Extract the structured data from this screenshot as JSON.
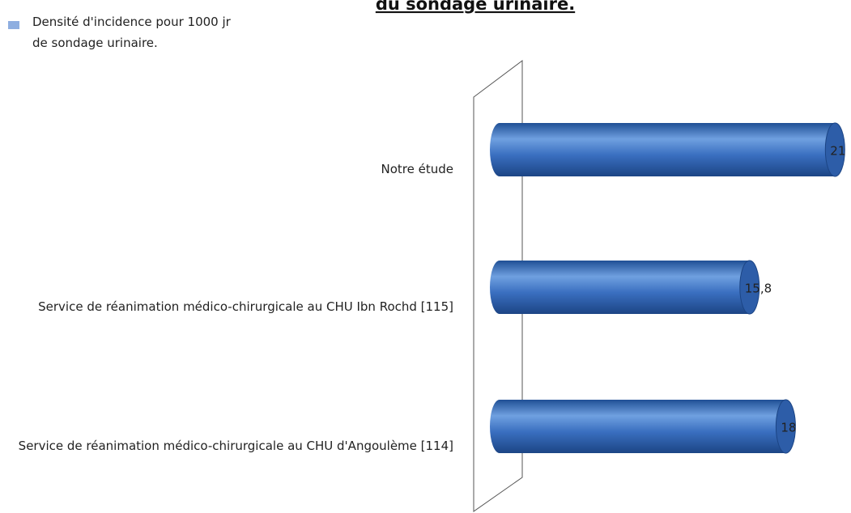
{
  "chart_data": {
    "type": "bar",
    "orientation": "horizontal",
    "title": "du sondage urinaire.",
    "categories": [
      "Notre étude",
      "Service de réanimation médico-chirurgicale au CHU Ibn Rochd [115]",
      "Service de réanimation médico-chirurgicale au CHU d'Angoulème [114]"
    ],
    "series": [
      {
        "name": "Densité d'incidence pour 1000 jr de sondage urinaire.",
        "color": "#3a6fc0",
        "values": [
          21,
          15.8,
          18
        ],
        "value_labels": [
          "21",
          "15,8",
          "18"
        ]
      }
    ]
  }
}
